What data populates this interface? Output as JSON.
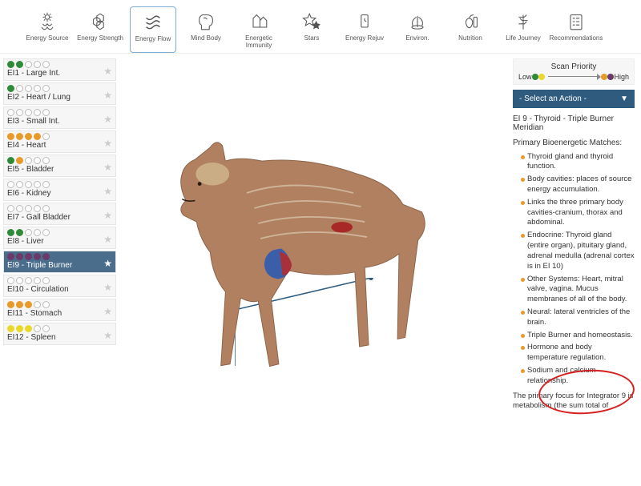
{
  "topnav": [
    {
      "id": "energy-source",
      "label": "Energy Source"
    },
    {
      "id": "energy-strength",
      "label": "Energy Strength"
    },
    {
      "id": "energy-flow",
      "label": "Energy Flow"
    },
    {
      "id": "mind-body",
      "label": "Mind Body"
    },
    {
      "id": "energetic-immunity",
      "label": "Energetic Immunity"
    },
    {
      "id": "stars",
      "label": "Stars"
    },
    {
      "id": "energy-rejuv",
      "label": "Energy Rejuv"
    },
    {
      "id": "environ",
      "label": "Environ."
    },
    {
      "id": "nutrition",
      "label": "Nutrition"
    },
    {
      "id": "life-journey",
      "label": "Life Journey"
    },
    {
      "id": "recommendations",
      "label": "Recommendations"
    }
  ],
  "active_tab_index": 2,
  "priority": {
    "title": "Scan Priority",
    "low": "Low",
    "high": "High"
  },
  "action_select": "- Select an Action -",
  "sidebar": [
    {
      "label": "EI1 - Large Int.",
      "dots": [
        "g",
        "g",
        "",
        "",
        ""
      ]
    },
    {
      "label": "EI2 - Heart / Lung",
      "dots": [
        "g",
        "",
        "",
        "",
        ""
      ]
    },
    {
      "label": "EI3 - Small Int.",
      "dots": [
        "",
        "",
        "",
        "",
        ""
      ]
    },
    {
      "label": "EI4 - Heart",
      "dots": [
        "o",
        "o",
        "o",
        "o",
        ""
      ]
    },
    {
      "label": "EI5 - Bladder",
      "dots": [
        "g",
        "o",
        "",
        "",
        ""
      ]
    },
    {
      "label": "EI6 - Kidney",
      "dots": [
        "",
        "",
        "",
        "",
        ""
      ]
    },
    {
      "label": "EI7 - Gall Bladder",
      "dots": [
        "",
        "",
        "",
        "",
        ""
      ]
    },
    {
      "label": "EI8 - Liver",
      "dots": [
        "g",
        "g",
        "",
        "",
        ""
      ]
    },
    {
      "label": "EI9 - Triple Burner",
      "dots": [
        "p",
        "p",
        "p",
        "p",
        "p"
      ]
    },
    {
      "label": "EI10 - Circulation",
      "dots": [
        "",
        "",
        "",
        "",
        ""
      ]
    },
    {
      "label": "EI11 - Stomach",
      "dots": [
        "o",
        "o",
        "o",
        "",
        ""
      ]
    },
    {
      "label": "EI12 - Spleen",
      "dots": [
        "y",
        "y",
        "y",
        "",
        ""
      ]
    }
  ],
  "selected_index": 8,
  "info": {
    "title": "EI 9 - Thyroid - Triple Burner Meridian",
    "subtitle": "Primary Bioenergetic Matches:",
    "bullets": [
      "Thyroid gland and thyroid function.",
      "Body cavities: places of source energy accumulation.",
      "Links the three primary body cavities-cranium, thorax and abdominal.",
      "Endocrine: Thyroid gland (entire organ), pituitary gland, adrenal medulla (adrenal cortex is in EI 10)",
      "Other Systems: Heart, mitral valve, vagina. Mucus membranes of all of the body.",
      "Neural: lateral ventricles of the brain.",
      "Triple Burner and homeostasis.",
      "Hormone and body temperature regulation.",
      "Sodium and calcium relationship."
    ],
    "footer": "The primary focus for Integrator 9 is metabolism (the sum total of"
  },
  "colors": {
    "green": "#2e8b3a",
    "orange": "#e89a2a",
    "yellow": "#e8d92a",
    "purple": "#6b3a6b",
    "sel": "#4a6d8c",
    "action": "#2f5b7f"
  }
}
